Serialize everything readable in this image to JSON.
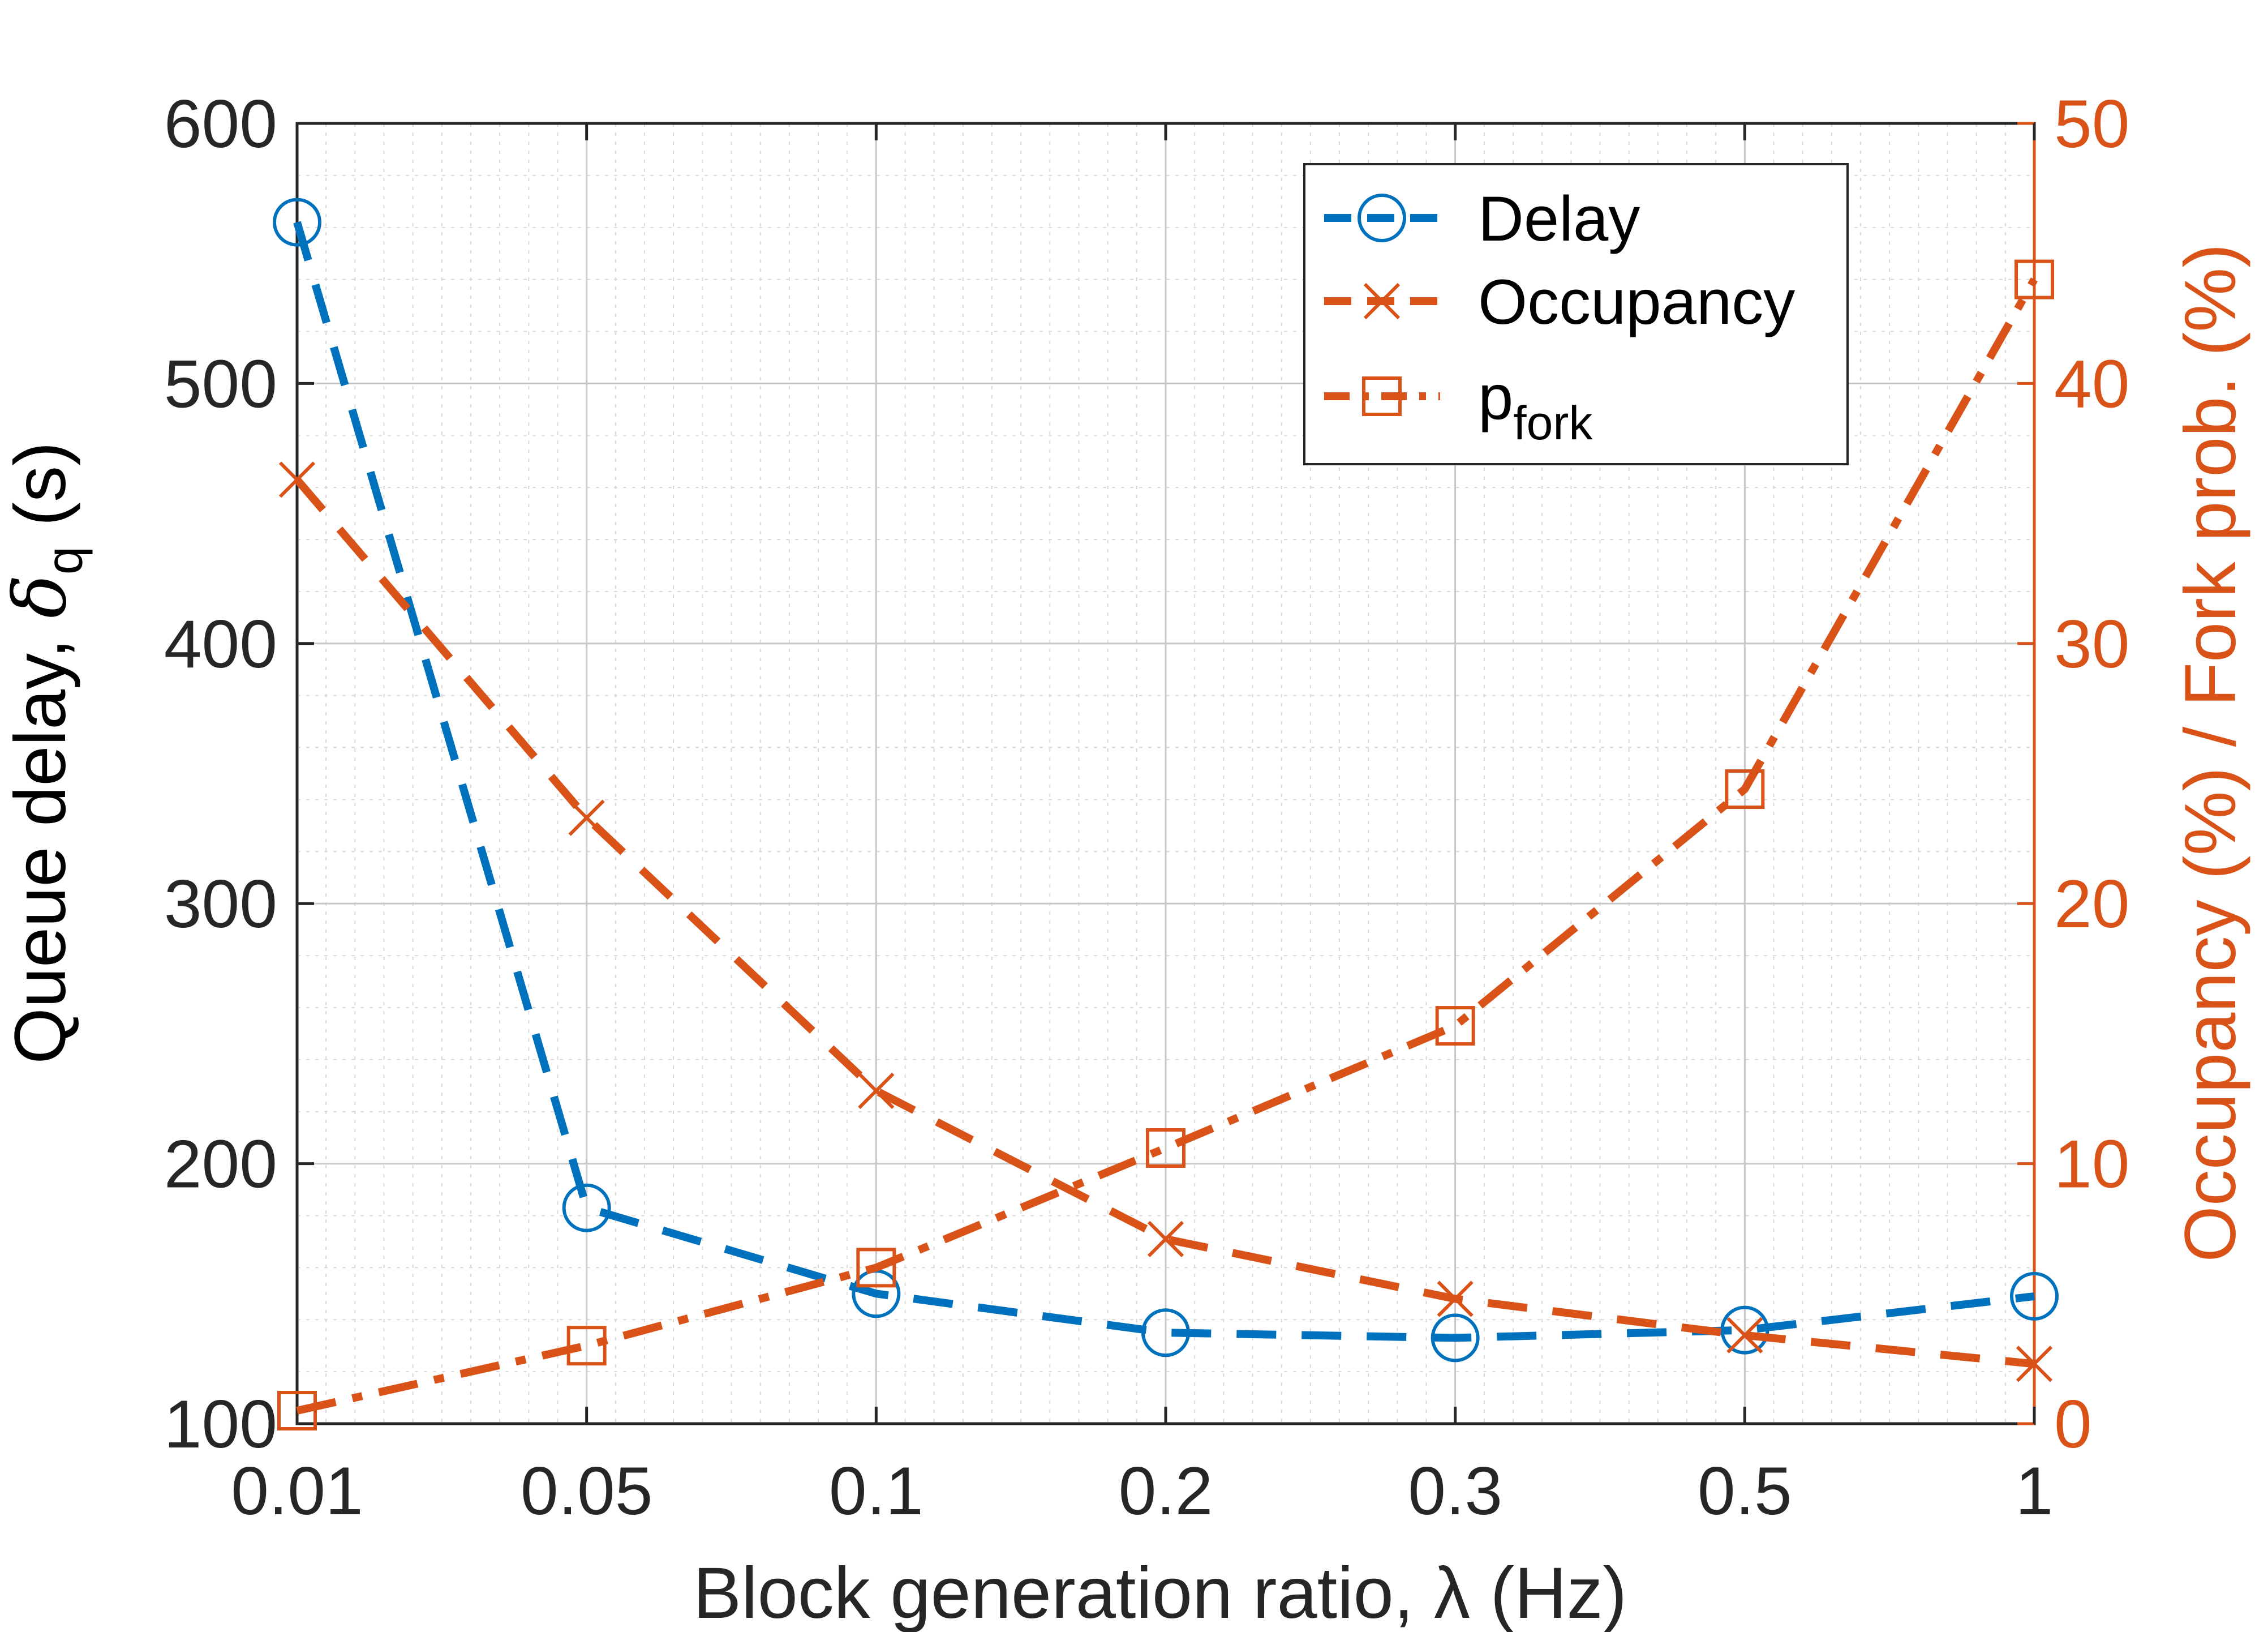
{
  "chart_data": {
    "type": "line",
    "x_scale": "categorical-like (unequal spacing per tick labels)",
    "categories": [
      "0.01",
      "0.05",
      "0.1",
      "0.2",
      "0.3",
      "0.5",
      "1"
    ],
    "xlabel": "Block generation ratio, λ (Hz)",
    "ylabel_left": {
      "main": "Queue delay, ",
      "symbol": "δ",
      "subscript": "q",
      "suffix": " (s)"
    },
    "ylabel_right": "Occupancy (%) / Fork prob. (%)",
    "ylim_left": [
      100,
      600
    ],
    "yticks_left": [
      "100",
      "200",
      "300",
      "400",
      "500",
      "600"
    ],
    "ylim_right": [
      0,
      50
    ],
    "yticks_right": [
      "0",
      "10",
      "20",
      "30",
      "40",
      "50"
    ],
    "grid": true,
    "minor_grid": true,
    "legend_position": "top-right",
    "series": [
      {
        "name": "Delay",
        "axis": "left",
        "color": "#0072BD",
        "line": "dashed",
        "marker": "circle",
        "values": [
          562,
          183,
          150,
          135,
          133,
          136,
          149
        ]
      },
      {
        "name": "Occupancy",
        "axis": "right",
        "color": "#D95319",
        "line": "dashed",
        "marker": "x",
        "values": [
          36.3,
          23.3,
          12.8,
          7.1,
          4.8,
          3.4,
          2.3
        ]
      },
      {
        "name": "p",
        "name_subscript": "fork",
        "axis": "right",
        "color": "#D95319",
        "line": "dashdot",
        "marker": "square",
        "values": [
          0.5,
          3.0,
          6.0,
          10.6,
          15.3,
          24.4,
          44.0
        ]
      }
    ]
  }
}
